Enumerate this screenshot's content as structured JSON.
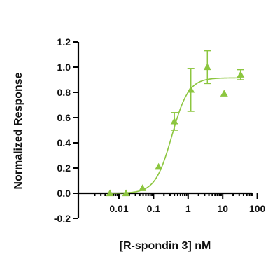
{
  "chart_data": {
    "type": "scatter",
    "xlabel": "[R-spondin 3] nM",
    "ylabel": "Normalized Response",
    "x_scale": "log",
    "xlim": [
      0.001,
      100
    ],
    "ylim": [
      -0.2,
      1.2
    ],
    "x_ticks": [
      0.01,
      0.1,
      1,
      10,
      100
    ],
    "x_tick_labels": [
      "0.01",
      "0.1",
      "1",
      "10",
      "100"
    ],
    "y_ticks": [
      -0.2,
      0.0,
      0.2,
      0.4,
      0.6,
      0.8,
      1.0,
      1.2
    ],
    "y_tick_labels": [
      "-0.2",
      "0.0",
      "0.2",
      "0.4",
      "0.6",
      "0.8",
      "1.0",
      "1.2"
    ],
    "grid": false,
    "color": "#8cc63f",
    "marker": "triangle",
    "series": [
      {
        "points": [
          {
            "x": 0.0055,
            "y": 0.0
          },
          {
            "x": 0.016,
            "y": 0.0
          },
          {
            "x": 0.048,
            "y": 0.04
          },
          {
            "x": 0.14,
            "y": 0.21
          },
          {
            "x": 0.4,
            "y": 0.57,
            "err": 0.07
          },
          {
            "x": 1.2,
            "y": 0.82,
            "err": 0.17
          },
          {
            "x": 3.6,
            "y": 1.0,
            "err": 0.13
          },
          {
            "x": 11,
            "y": 0.79
          },
          {
            "x": 33,
            "y": 0.94,
            "err": 0.04
          }
        ]
      }
    ],
    "fit": {
      "model": "4PL",
      "bottom": 0.0,
      "top": 0.915,
      "ec50": 0.34,
      "hill": 1.8
    }
  }
}
